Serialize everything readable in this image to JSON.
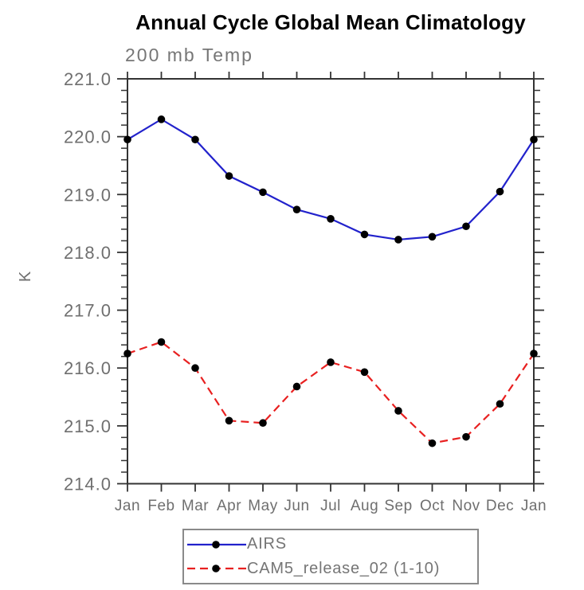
{
  "chart_data": {
    "type": "line",
    "title": "Annual Cycle Global Mean Climatology",
    "subtitle": "200 mb Temp",
    "xlabel": "",
    "ylabel": "K",
    "categories": [
      "Jan",
      "Feb",
      "Mar",
      "Apr",
      "May",
      "Jun",
      "Jul",
      "Aug",
      "Sep",
      "Oct",
      "Nov",
      "Dec",
      "Jan"
    ],
    "ylim": [
      214.0,
      221.0
    ],
    "ytick_labels": [
      "221.0",
      "220.0",
      "219.0",
      "218.0",
      "217.0",
      "216.0",
      "215.0",
      "214.0"
    ],
    "yminor_step": 0.2,
    "grid": "off",
    "legend_position": "bottom",
    "frame_color": "#333333",
    "series": [
      {
        "name": "AIRS",
        "color": "#2222cc",
        "line_style": "solid",
        "marker": "circle",
        "marker_color": "#000000",
        "values": [
          219.95,
          220.3,
          219.95,
          219.32,
          219.04,
          218.74,
          218.58,
          218.31,
          218.22,
          218.27,
          218.45,
          219.05,
          219.95
        ]
      },
      {
        "name": "CAM5_release_02 (1-10)",
        "color": "#e82020",
        "line_style": "dashed",
        "marker": "circle",
        "marker_color": "#000000",
        "values": [
          216.25,
          216.45,
          216.0,
          215.09,
          215.05,
          215.68,
          216.1,
          215.93,
          215.26,
          214.7,
          214.81,
          215.38,
          216.25
        ]
      }
    ]
  }
}
